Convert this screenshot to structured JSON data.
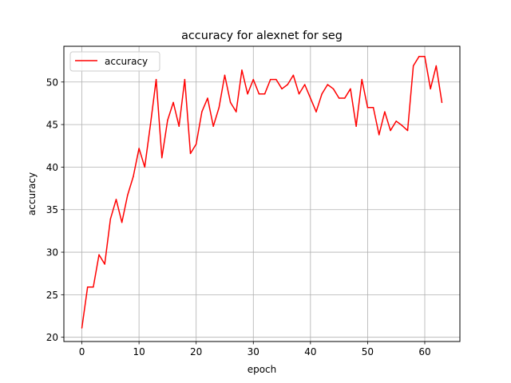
{
  "chart_data": {
    "type": "line",
    "title": "accuracy for alexnet for seg",
    "xlabel": "epoch",
    "ylabel": "accuracy",
    "xlim": [
      -3.15,
      66.15
    ],
    "ylim": [
      19.5,
      54.2
    ],
    "xticks": [
      0,
      10,
      20,
      30,
      40,
      50,
      60
    ],
    "yticks": [
      20,
      25,
      30,
      35,
      40,
      45,
      50
    ],
    "grid": true,
    "legend_position": "upper-left",
    "series": [
      {
        "name": "accuracy",
        "color": "#ff0000",
        "x": [
          0,
          1,
          2,
          3,
          4,
          5,
          6,
          7,
          8,
          9,
          10,
          11,
          12,
          13,
          14,
          15,
          16,
          17,
          18,
          19,
          20,
          21,
          22,
          23,
          24,
          25,
          26,
          27,
          28,
          29,
          30,
          31,
          32,
          33,
          34,
          35,
          36,
          37,
          38,
          39,
          40,
          41,
          42,
          43,
          44,
          45,
          46,
          47,
          48,
          49,
          50,
          51,
          52,
          53,
          54,
          55,
          56,
          57,
          58,
          59,
          60,
          61,
          62,
          63
        ],
        "y": [
          21.1,
          25.9,
          25.9,
          29.7,
          28.6,
          33.9,
          36.2,
          33.5,
          36.7,
          38.9,
          42.2,
          40.0,
          45.0,
          50.3,
          41.1,
          45.5,
          47.6,
          44.8,
          50.3,
          41.6,
          42.7,
          46.5,
          48.1,
          44.8,
          47.0,
          50.8,
          47.6,
          46.5,
          51.4,
          48.6,
          50.3,
          48.6,
          48.6,
          50.3,
          50.3,
          49.2,
          49.7,
          50.8,
          48.6,
          49.7,
          48.1,
          46.5,
          48.6,
          49.7,
          49.2,
          48.1,
          48.1,
          49.2,
          44.8,
          50.3,
          47.0,
          47.0,
          43.8,
          46.5,
          44.3,
          45.4,
          44.9,
          44.3,
          51.9,
          53.0,
          53.0,
          49.2,
          51.9,
          47.6
        ]
      }
    ]
  }
}
